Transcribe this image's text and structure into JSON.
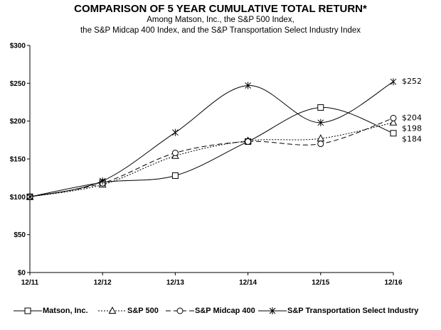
{
  "chart_data": {
    "type": "line",
    "title": "COMPARISON OF 5 YEAR CUMULATIVE TOTAL RETURN*",
    "subtitle_lines": [
      "Among Matson, Inc., the S&P 500 Index,",
      "the S&P Midcap 400 Index, and the S&P Transportation Select Industry Index"
    ],
    "categories": [
      "12/11",
      "12/12",
      "12/13",
      "12/14",
      "12/15",
      "12/16"
    ],
    "ylim": [
      0,
      300
    ],
    "yticks": [
      0,
      50,
      100,
      150,
      200,
      250,
      300
    ],
    "ytick_labels": [
      "$0",
      "$50",
      "$100",
      "$150",
      "$200",
      "$250",
      "$300"
    ],
    "grid": false,
    "legend_position": "bottom",
    "series": [
      {
        "name": "Matson, Inc.",
        "values": [
          100,
          119,
          128,
          173,
          218,
          184
        ],
        "marker": "square",
        "dash": "",
        "end_label": "$184"
      },
      {
        "name": "S&P 500",
        "values": [
          100,
          116,
          154,
          174,
          177,
          198
        ],
        "marker": "triangle",
        "dash": "2,2",
        "end_label": "$198"
      },
      {
        "name": "S&P Midcap 400",
        "values": [
          100,
          118,
          158,
          173,
          170,
          204
        ],
        "marker": "circle",
        "dash": "7,4",
        "end_label": "$204"
      },
      {
        "name": "S&P Transportation Select Industry",
        "values": [
          100,
          121,
          185,
          247,
          198,
          252
        ],
        "marker": "star",
        "dash": "",
        "end_label": "$252"
      }
    ]
  }
}
